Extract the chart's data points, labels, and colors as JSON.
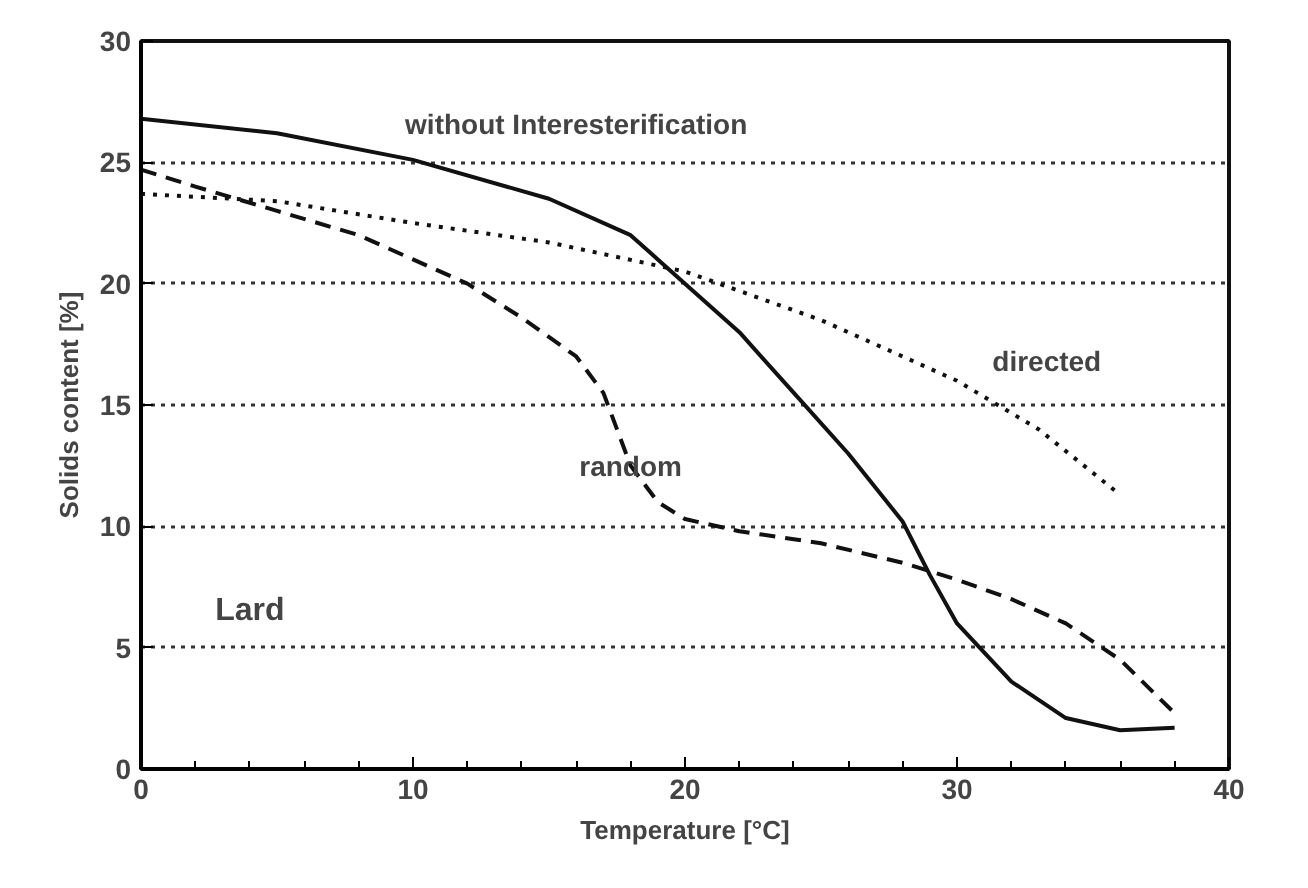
{
  "chart_data": {
    "type": "line",
    "xlabel": "Temperature [°C]",
    "ylabel": "Solids content [%]",
    "xlim": [
      0,
      40
    ],
    "ylim": [
      0,
      30
    ],
    "xticks": [
      0,
      10,
      20,
      30,
      40
    ],
    "yticks": [
      0,
      5,
      10,
      15,
      20,
      25,
      30
    ],
    "grid": "y",
    "series": [
      {
        "color": "#111111",
        "line_style": "solid",
        "x": [
          0,
          5,
          10,
          15,
          18,
          19,
          20,
          22,
          24,
          26,
          28,
          29,
          30,
          32,
          34,
          36,
          38
        ],
        "values": [
          26.8,
          26.2,
          25.1,
          23.5,
          22.0,
          21.0,
          20.0,
          18.0,
          15.5,
          13.0,
          10.2,
          8.0,
          6.0,
          3.6,
          2.1,
          1.6,
          1.7
        ]
      },
      {
        "color": "#111111",
        "line_style": "dashed",
        "x": [
          0,
          2,
          5,
          8,
          10,
          12,
          14,
          16,
          17,
          18,
          19,
          20,
          22,
          25,
          28,
          30,
          32,
          34,
          36,
          38
        ],
        "values": [
          24.7,
          24.0,
          23.0,
          22.0,
          21.0,
          20.0,
          18.6,
          17.0,
          15.5,
          12.5,
          11.0,
          10.3,
          9.8,
          9.3,
          8.5,
          7.8,
          7.0,
          6.0,
          4.5,
          2.3
        ]
      },
      {
        "color": "#111111",
        "line_style": "dotted",
        "x": [
          0,
          5,
          10,
          15,
          20,
          25,
          30,
          33,
          36
        ],
        "values": [
          23.7,
          23.4,
          22.5,
          21.7,
          20.5,
          18.5,
          16.0,
          14.0,
          11.3
        ]
      }
    ],
    "annotations": [
      "without Interesterification",
      "directed",
      "random",
      "Lard"
    ]
  }
}
